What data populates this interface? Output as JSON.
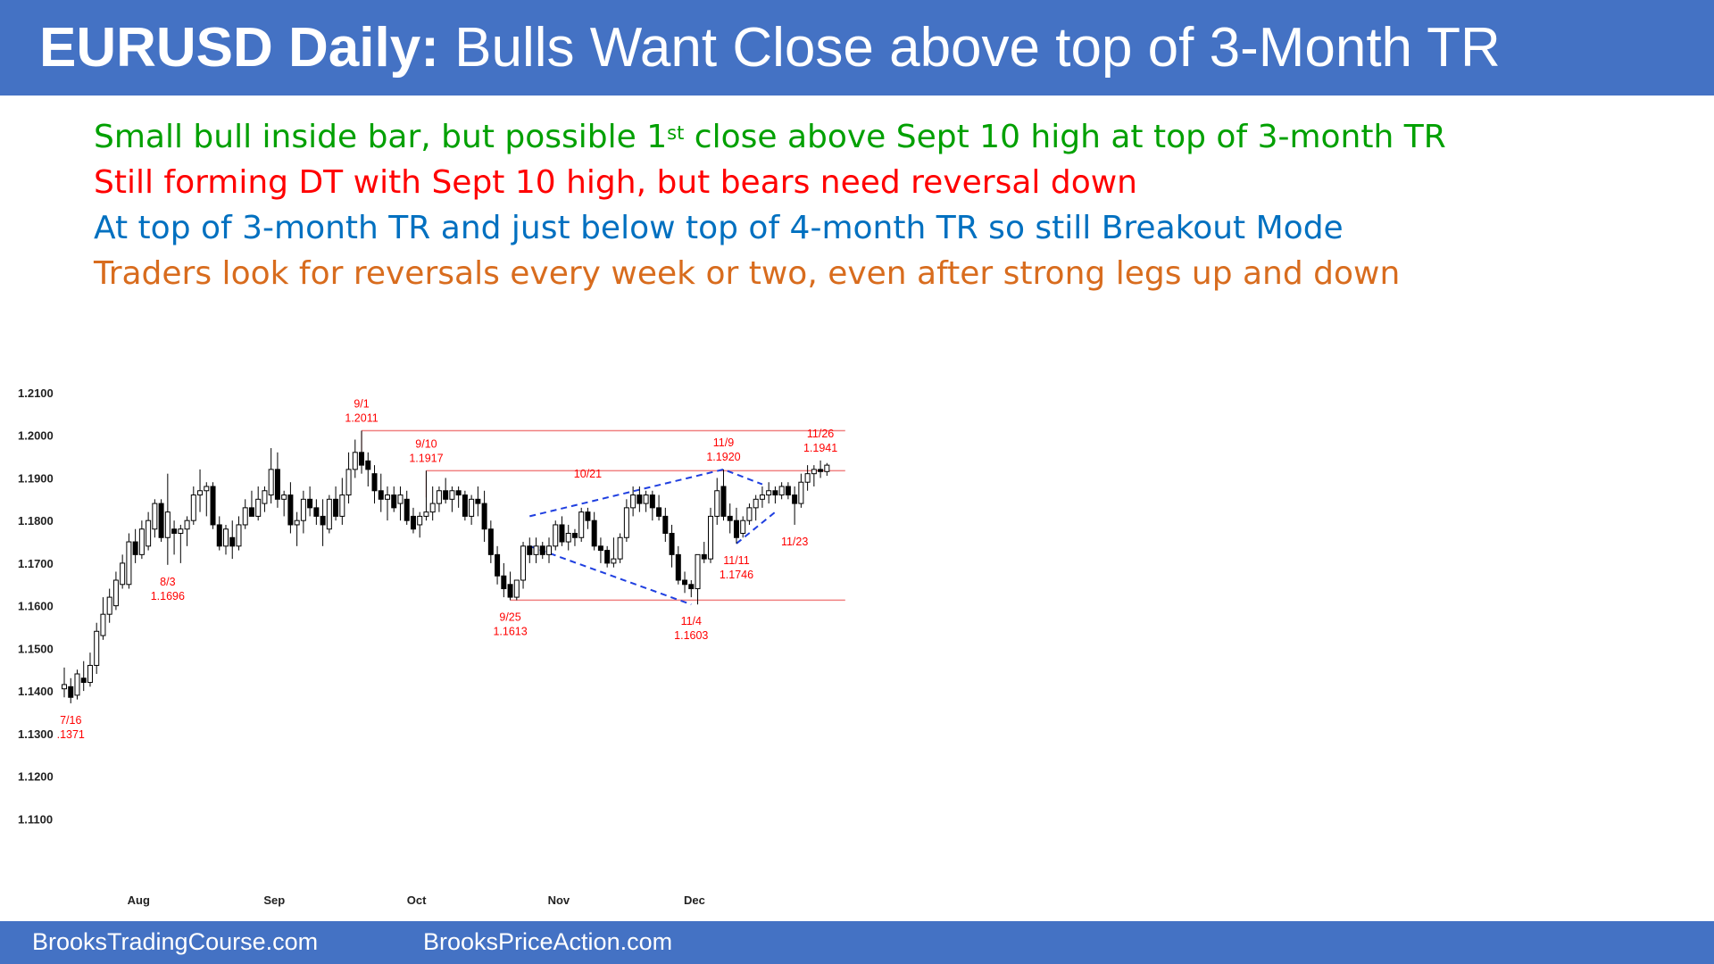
{
  "header": {
    "title_bold": "EURUSD Daily:",
    "title_rest": "Bulls Want Close above top of 3-Month TR"
  },
  "bullets": [
    {
      "pre": "Small bull inside bar, but possible 1",
      "sup": "st",
      "post": " close above Sept 10 high at top of 3-month TR",
      "color": "#00A000"
    },
    {
      "pre": "Still forming DT with Sept 10 high, but bears need reversal down",
      "sup": "",
      "post": "",
      "color": "#FF0000"
    },
    {
      "pre": "At top of 3-month TR and just below top of 4-month TR so still Breakout Mode",
      "sup": "",
      "post": "",
      "color": "#0070C0"
    },
    {
      "pre": "Traders look for reversals every week or two, even after strong legs up and down",
      "sup": "",
      "post": "",
      "color": "#D86C1E"
    }
  ],
  "footer": {
    "left": "BrooksTradingCourse.com",
    "right": "BrooksPriceAction.com"
  },
  "colors": {
    "header_bg": "#4472C4",
    "annotation": "#FF0000",
    "level_line": "#F08080",
    "triangle": "#1F3FE0"
  },
  "chart_data": {
    "type": "candlestick",
    "title": "",
    "xlabel": "",
    "ylabel": "",
    "ylim": [
      1.1,
      1.21
    ],
    "yticks": [
      "1.2100",
      "1.2000",
      "1.1900",
      "1.1800",
      "1.1700",
      "1.1600",
      "1.1500",
      "1.1400",
      "1.1300",
      "1.1200",
      "1.1100"
    ],
    "yticks_values": [
      1.21,
      1.2,
      1.19,
      1.18,
      1.17,
      1.16,
      1.15,
      1.14,
      1.13,
      1.12,
      1.11
    ],
    "xticks": [
      {
        "label": "Aug",
        "index": 11.5
      },
      {
        "label": "Sep",
        "index": 32.5
      },
      {
        "label": "Oct",
        "index": 54.5
      },
      {
        "label": "Nov",
        "index": 76.5
      },
      {
        "label": "Dec",
        "index": 97.5
      }
    ],
    "candles": [
      {
        "o": 1.1405,
        "h": 1.1455,
        "l": 1.1385,
        "c": 1.1415
      },
      {
        "o": 1.141,
        "h": 1.143,
        "l": 1.1371,
        "c": 1.1385
      },
      {
        "o": 1.139,
        "h": 1.145,
        "l": 1.138,
        "c": 1.144
      },
      {
        "o": 1.143,
        "h": 1.147,
        "l": 1.14,
        "c": 1.142
      },
      {
        "o": 1.142,
        "h": 1.149,
        "l": 1.141,
        "c": 1.146
      },
      {
        "o": 1.146,
        "h": 1.156,
        "l": 1.144,
        "c": 1.154
      },
      {
        "o": 1.153,
        "h": 1.162,
        "l": 1.152,
        "c": 1.158
      },
      {
        "o": 1.158,
        "h": 1.164,
        "l": 1.156,
        "c": 1.162
      },
      {
        "o": 1.16,
        "h": 1.168,
        "l": 1.159,
        "c": 1.166
      },
      {
        "o": 1.165,
        "h": 1.172,
        "l": 1.164,
        "c": 1.17
      },
      {
        "o": 1.165,
        "h": 1.177,
        "l": 1.164,
        "c": 1.175
      },
      {
        "o": 1.175,
        "h": 1.178,
        "l": 1.17,
        "c": 1.172
      },
      {
        "o": 1.172,
        "h": 1.18,
        "l": 1.171,
        "c": 1.178
      },
      {
        "o": 1.174,
        "h": 1.182,
        "l": 1.173,
        "c": 1.18
      },
      {
        "o": 1.178,
        "h": 1.185,
        "l": 1.176,
        "c": 1.184
      },
      {
        "o": 1.184,
        "h": 1.185,
        "l": 1.175,
        "c": 1.176
      },
      {
        "o": 1.176,
        "h": 1.191,
        "l": 1.1696,
        "c": 1.182
      },
      {
        "o": 1.178,
        "h": 1.18,
        "l": 1.172,
        "c": 1.177
      },
      {
        "o": 1.177,
        "h": 1.179,
        "l": 1.17,
        "c": 1.178
      },
      {
        "o": 1.178,
        "h": 1.181,
        "l": 1.174,
        "c": 1.18
      },
      {
        "o": 1.18,
        "h": 1.188,
        "l": 1.179,
        "c": 1.186
      },
      {
        "o": 1.186,
        "h": 1.192,
        "l": 1.182,
        "c": 1.187
      },
      {
        "o": 1.187,
        "h": 1.189,
        "l": 1.181,
        "c": 1.188
      },
      {
        "o": 1.188,
        "h": 1.189,
        "l": 1.178,
        "c": 1.179
      },
      {
        "o": 1.179,
        "h": 1.181,
        "l": 1.173,
        "c": 1.174
      },
      {
        "o": 1.174,
        "h": 1.179,
        "l": 1.172,
        "c": 1.178
      },
      {
        "o": 1.176,
        "h": 1.18,
        "l": 1.171,
        "c": 1.174
      },
      {
        "o": 1.174,
        "h": 1.181,
        "l": 1.173,
        "c": 1.179
      },
      {
        "o": 1.179,
        "h": 1.185,
        "l": 1.178,
        "c": 1.183
      },
      {
        "o": 1.183,
        "h": 1.187,
        "l": 1.181,
        "c": 1.181
      },
      {
        "o": 1.181,
        "h": 1.188,
        "l": 1.18,
        "c": 1.185
      },
      {
        "o": 1.184,
        "h": 1.188,
        "l": 1.182,
        "c": 1.187
      },
      {
        "o": 1.186,
        "h": 1.197,
        "l": 1.184,
        "c": 1.192
      },
      {
        "o": 1.192,
        "h": 1.196,
        "l": 1.183,
        "c": 1.185
      },
      {
        "o": 1.185,
        "h": 1.187,
        "l": 1.181,
        "c": 1.186
      },
      {
        "o": 1.186,
        "h": 1.189,
        "l": 1.177,
        "c": 1.179
      },
      {
        "o": 1.179,
        "h": 1.182,
        "l": 1.174,
        "c": 1.18
      },
      {
        "o": 1.18,
        "h": 1.187,
        "l": 1.177,
        "c": 1.185
      },
      {
        "o": 1.185,
        "h": 1.188,
        "l": 1.181,
        "c": 1.183
      },
      {
        "o": 1.183,
        "h": 1.185,
        "l": 1.179,
        "c": 1.181
      },
      {
        "o": 1.181,
        "h": 1.185,
        "l": 1.174,
        "c": 1.179
      },
      {
        "o": 1.178,
        "h": 1.186,
        "l": 1.177,
        "c": 1.185
      },
      {
        "o": 1.185,
        "h": 1.188,
        "l": 1.18,
        "c": 1.181
      },
      {
        "o": 1.181,
        "h": 1.19,
        "l": 1.179,
        "c": 1.186
      },
      {
        "o": 1.186,
        "h": 1.196,
        "l": 1.184,
        "c": 1.192
      },
      {
        "o": 1.192,
        "h": 1.199,
        "l": 1.19,
        "c": 1.196
      },
      {
        "o": 1.196,
        "h": 1.2011,
        "l": 1.191,
        "c": 1.193
      },
      {
        "o": 1.194,
        "h": 1.196,
        "l": 1.188,
        "c": 1.192
      },
      {
        "o": 1.191,
        "h": 1.193,
        "l": 1.184,
        "c": 1.187
      },
      {
        "o": 1.187,
        "h": 1.191,
        "l": 1.182,
        "c": 1.185
      },
      {
        "o": 1.185,
        "h": 1.188,
        "l": 1.18,
        "c": 1.186
      },
      {
        "o": 1.186,
        "h": 1.188,
        "l": 1.182,
        "c": 1.183
      },
      {
        "o": 1.184,
        "h": 1.188,
        "l": 1.18,
        "c": 1.186
      },
      {
        "o": 1.185,
        "h": 1.187,
        "l": 1.179,
        "c": 1.18
      },
      {
        "o": 1.181,
        "h": 1.183,
        "l": 1.177,
        "c": 1.178
      },
      {
        "o": 1.179,
        "h": 1.182,
        "l": 1.176,
        "c": 1.181
      },
      {
        "o": 1.181,
        "h": 1.1917,
        "l": 1.18,
        "c": 1.182
      },
      {
        "o": 1.182,
        "h": 1.188,
        "l": 1.18,
        "c": 1.184
      },
      {
        "o": 1.184,
        "h": 1.188,
        "l": 1.182,
        "c": 1.187
      },
      {
        "o": 1.187,
        "h": 1.19,
        "l": 1.184,
        "c": 1.185
      },
      {
        "o": 1.185,
        "h": 1.188,
        "l": 1.182,
        "c": 1.187
      },
      {
        "o": 1.187,
        "h": 1.188,
        "l": 1.183,
        "c": 1.186
      },
      {
        "o": 1.186,
        "h": 1.187,
        "l": 1.18,
        "c": 1.181
      },
      {
        "o": 1.181,
        "h": 1.186,
        "l": 1.179,
        "c": 1.185
      },
      {
        "o": 1.185,
        "h": 1.188,
        "l": 1.181,
        "c": 1.184
      },
      {
        "o": 1.184,
        "h": 1.187,
        "l": 1.175,
        "c": 1.178
      },
      {
        "o": 1.178,
        "h": 1.18,
        "l": 1.17,
        "c": 1.172
      },
      {
        "o": 1.172,
        "h": 1.174,
        "l": 1.165,
        "c": 1.167
      },
      {
        "o": 1.167,
        "h": 1.17,
        "l": 1.162,
        "c": 1.164
      },
      {
        "o": 1.165,
        "h": 1.168,
        "l": 1.1613,
        "c": 1.162
      },
      {
        "o": 1.162,
        "h": 1.166,
        "l": 1.1613,
        "c": 1.166
      },
      {
        "o": 1.166,
        "h": 1.175,
        "l": 1.164,
        "c": 1.174
      },
      {
        "o": 1.174,
        "h": 1.176,
        "l": 1.17,
        "c": 1.172
      },
      {
        "o": 1.172,
        "h": 1.176,
        "l": 1.17,
        "c": 1.174
      },
      {
        "o": 1.174,
        "h": 1.175,
        "l": 1.171,
        "c": 1.172
      },
      {
        "o": 1.172,
        "h": 1.176,
        "l": 1.17,
        "c": 1.174
      },
      {
        "o": 1.174,
        "h": 1.18,
        "l": 1.173,
        "c": 1.179
      },
      {
        "o": 1.179,
        "h": 1.181,
        "l": 1.174,
        "c": 1.175
      },
      {
        "o": 1.175,
        "h": 1.179,
        "l": 1.173,
        "c": 1.177
      },
      {
        "o": 1.177,
        "h": 1.178,
        "l": 1.174,
        "c": 1.176
      },
      {
        "o": 1.176,
        "h": 1.183,
        "l": 1.175,
        "c": 1.182
      },
      {
        "o": 1.182,
        "h": 1.183,
        "l": 1.178,
        "c": 1.18
      },
      {
        "o": 1.18,
        "h": 1.182,
        "l": 1.173,
        "c": 1.174
      },
      {
        "o": 1.174,
        "h": 1.176,
        "l": 1.17,
        "c": 1.173
      },
      {
        "o": 1.173,
        "h": 1.174,
        "l": 1.169,
        "c": 1.17
      },
      {
        "o": 1.17,
        "h": 1.176,
        "l": 1.169,
        "c": 1.171
      },
      {
        "o": 1.171,
        "h": 1.177,
        "l": 1.17,
        "c": 1.176
      },
      {
        "o": 1.176,
        "h": 1.185,
        "l": 1.175,
        "c": 1.183
      },
      {
        "o": 1.183,
        "h": 1.188,
        "l": 1.181,
        "c": 1.186
      },
      {
        "o": 1.186,
        "h": 1.188,
        "l": 1.182,
        "c": 1.184
      },
      {
        "o": 1.184,
        "h": 1.187,
        "l": 1.182,
        "c": 1.186
      },
      {
        "o": 1.186,
        "h": 1.187,
        "l": 1.18,
        "c": 1.183
      },
      {
        "o": 1.183,
        "h": 1.186,
        "l": 1.18,
        "c": 1.181
      },
      {
        "o": 1.181,
        "h": 1.183,
        "l": 1.175,
        "c": 1.177
      },
      {
        "o": 1.177,
        "h": 1.179,
        "l": 1.169,
        "c": 1.172
      },
      {
        "o": 1.172,
        "h": 1.174,
        "l": 1.165,
        "c": 1.166
      },
      {
        "o": 1.166,
        "h": 1.168,
        "l": 1.163,
        "c": 1.165
      },
      {
        "o": 1.165,
        "h": 1.166,
        "l": 1.162,
        "c": 1.164
      },
      {
        "o": 1.164,
        "h": 1.172,
        "l": 1.1603,
        "c": 1.172
      },
      {
        "o": 1.172,
        "h": 1.175,
        "l": 1.17,
        "c": 1.171
      },
      {
        "o": 1.171,
        "h": 1.183,
        "l": 1.17,
        "c": 1.181
      },
      {
        "o": 1.181,
        "h": 1.19,
        "l": 1.179,
        "c": 1.187
      },
      {
        "o": 1.188,
        "h": 1.192,
        "l": 1.18,
        "c": 1.181
      },
      {
        "o": 1.181,
        "h": 1.184,
        "l": 1.177,
        "c": 1.18
      },
      {
        "o": 1.18,
        "h": 1.183,
        "l": 1.1746,
        "c": 1.176
      },
      {
        "o": 1.177,
        "h": 1.181,
        "l": 1.176,
        "c": 1.18
      },
      {
        "o": 1.18,
        "h": 1.184,
        "l": 1.179,
        "c": 1.183
      },
      {
        "o": 1.183,
        "h": 1.186,
        "l": 1.18,
        "c": 1.185
      },
      {
        "o": 1.185,
        "h": 1.188,
        "l": 1.183,
        "c": 1.186
      },
      {
        "o": 1.186,
        "h": 1.189,
        "l": 1.184,
        "c": 1.187
      },
      {
        "o": 1.187,
        "h": 1.188,
        "l": 1.184,
        "c": 1.186
      },
      {
        "o": 1.186,
        "h": 1.189,
        "l": 1.185,
        "c": 1.188
      },
      {
        "o": 1.188,
        "h": 1.189,
        "l": 1.185,
        "c": 1.186
      },
      {
        "o": 1.186,
        "h": 1.188,
        "l": 1.179,
        "c": 1.184
      },
      {
        "o": 1.184,
        "h": 1.191,
        "l": 1.183,
        "c": 1.189
      },
      {
        "o": 1.189,
        "h": 1.193,
        "l": 1.187,
        "c": 1.191
      },
      {
        "o": 1.191,
        "h": 1.193,
        "l": 1.188,
        "c": 1.192
      },
      {
        "o": 1.192,
        "h": 1.1941,
        "l": 1.19,
        "c": 1.1915
      },
      {
        "o": 1.1915,
        "h": 1.1935,
        "l": 1.1905,
        "c": 1.193
      }
    ],
    "horizontal_lines": [
      {
        "y": 1.2011,
        "from_index": 46,
        "to_index": 120
      },
      {
        "y": 1.1917,
        "from_index": 56,
        "to_index": 120
      },
      {
        "y": 1.1613,
        "from_index": 69,
        "to_index": 120
      }
    ],
    "triangles": [
      {
        "points": [
          [
            72,
            1.181
          ],
          [
            102,
            1.192
          ],
          [
            108,
            1.1885
          ]
        ]
      },
      {
        "points": [
          [
            72,
            1.174
          ],
          [
            97,
            1.1603
          ]
        ]
      },
      {
        "points": [
          [
            104,
            1.1746
          ],
          [
            110,
            1.182
          ]
        ]
      }
    ],
    "annotations": [
      {
        "date": "7/16",
        "value": ".1371",
        "index": 1,
        "y": 1.1371,
        "pos": "below"
      },
      {
        "date": "8/3",
        "value": "1.1696",
        "index": 16,
        "y": 1.1696,
        "pos": "below"
      },
      {
        "date": "9/1",
        "value": "1.2011",
        "index": 46,
        "y": 1.2011,
        "pos": "above"
      },
      {
        "date": "9/10",
        "value": "1.1917",
        "index": 56,
        "y": 1.1917,
        "pos": "above"
      },
      {
        "date": "10/21",
        "value": "",
        "index": 81,
        "y": 1.188,
        "pos": "above"
      },
      {
        "date": "9/25",
        "value": "1.1613",
        "index": 69,
        "y": 1.1613,
        "pos": "below"
      },
      {
        "date": "11/4",
        "value": "1.1603",
        "index": 97,
        "y": 1.1603,
        "pos": "below"
      },
      {
        "date": "11/9",
        "value": "1.1920",
        "index": 102,
        "y": 1.192,
        "pos": "above"
      },
      {
        "date": "11/11",
        "value": "1.1746",
        "index": 104,
        "y": 1.1746,
        "pos": "below"
      },
      {
        "date": "11/23",
        "value": "",
        "index": 113,
        "y": 1.179,
        "pos": "below"
      },
      {
        "date": "11/26",
        "value": "1.1941",
        "index": 117,
        "y": 1.1941,
        "pos": "above"
      }
    ],
    "grid": false,
    "legend": "none"
  }
}
